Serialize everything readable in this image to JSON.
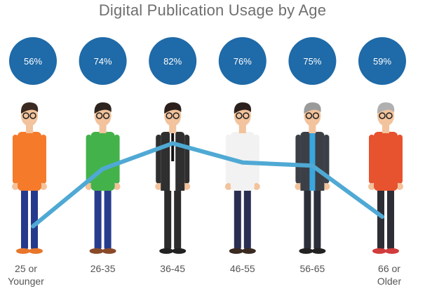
{
  "chart_data": {
    "type": "line",
    "title": "Digital Publication Usage by Age",
    "categories": [
      "25 or\nYounger",
      "26-35",
      "36-45",
      "46-55",
      "56-65",
      "66 or\nOlder"
    ],
    "values": [
      56,
      74,
      82,
      76,
      75,
      59
    ],
    "value_labels": [
      "56%",
      "74%",
      "82%",
      "76%",
      "75%",
      "59%"
    ],
    "ylim": [
      50,
      90
    ],
    "xlabel": "",
    "ylabel": "",
    "grid": false,
    "legend": "none",
    "colors": {
      "bubble": "#1f6aa8",
      "line": "#4fa9d4",
      "bubble_text": "#ffffff",
      "tick_text": "#555555",
      "title_text": "#6f6f6f"
    },
    "figures": [
      {
        "shirt": "#f57a2a",
        "pants": "#253a8c",
        "hair": "#3a2a20",
        "shoes": "#e8762a",
        "jacket": "",
        "tie": ""
      },
      {
        "shirt": "#44b24a",
        "pants": "#283c8e",
        "hair": "#2d2420",
        "shoes": "#8a4a2a",
        "jacket": "",
        "tie": ""
      },
      {
        "shirt": "#ffffff",
        "pants": "#2b2b2b",
        "hair": "#2b201b",
        "shoes": "#222222",
        "jacket": "#2f2f2f",
        "tie": "#111111"
      },
      {
        "shirt": "#f2f2f2",
        "pants": "#2a2f52",
        "hair": "#2b201b",
        "shoes": "#3a2a22",
        "jacket": "",
        "tie": ""
      },
      {
        "shirt": "#3aa6df",
        "pants": "#2a2f3a",
        "hair": "#9a9a9a",
        "shoes": "#222222",
        "jacket": "#3c3f46",
        "tie": ""
      },
      {
        "shirt": "#e7522f",
        "pants": "#2d2d35",
        "hair": "#b0b0b0",
        "shoes": "#d13c3c",
        "jacket": "",
        "tie": ""
      }
    ]
  }
}
